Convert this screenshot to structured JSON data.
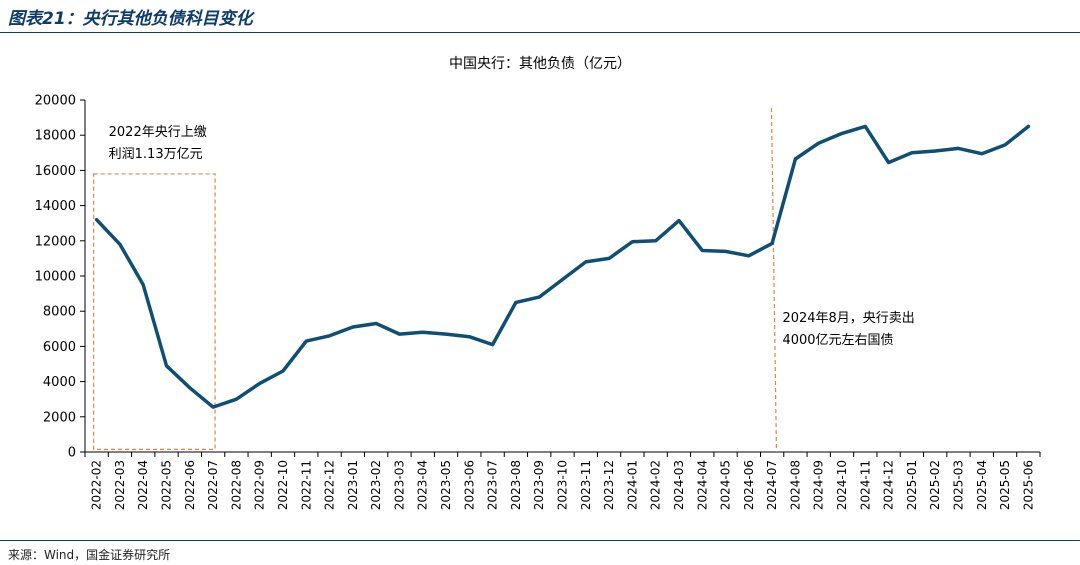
{
  "figure": {
    "title": "图表21：央行其他负债科目变化",
    "source": "来源：Wind，国金证券研究所"
  },
  "colors": {
    "line": "#0e4f73",
    "box": "#e8843b",
    "header": "#0d3c6b"
  },
  "chart_data": {
    "type": "line",
    "title": "中国央行：其他负债（亿元）",
    "xlabel": "",
    "ylabel": "",
    "ylim": [
      0,
      20000
    ],
    "yticks": [
      0,
      2000,
      4000,
      6000,
      8000,
      10000,
      12000,
      14000,
      16000,
      18000,
      20000
    ],
    "grid": false,
    "legend": "none",
    "categories": [
      "2022-02",
      "2022-03",
      "2022-04",
      "2022-05",
      "2022-06",
      "2022-07",
      "2022-08",
      "2022-09",
      "2022-10",
      "2022-11",
      "2022-12",
      "2023-01",
      "2023-02",
      "2023-03",
      "2023-04",
      "2023-05",
      "2023-06",
      "2023-07",
      "2023-08",
      "2023-09",
      "2023-10",
      "2023-11",
      "2023-12",
      "2024-01",
      "2024-02",
      "2024-03",
      "2024-04",
      "2024-05",
      "2024-06",
      "2024-07",
      "2024-08",
      "2024-09",
      "2024-10",
      "2024-11",
      "2024-12",
      "2025-01",
      "2025-02",
      "2025-03",
      "2025-04",
      "2025-05",
      "2025-06"
    ],
    "series": [
      {
        "values": [
          13200,
          11800,
          9500,
          4900,
          3650,
          2550,
          3000,
          3900,
          4600,
          6300,
          6600,
          7100,
          7300,
          6700,
          6800,
          6700,
          6550,
          6100,
          8500,
          8800,
          9800,
          10800,
          11000,
          11950,
          12000,
          13150,
          11450,
          11400,
          11150,
          11850,
          16650,
          17550,
          18100,
          18500,
          16450,
          17000,
          17100,
          17250,
          16950,
          17450,
          18500
        ]
      }
    ],
    "annotations": [
      {
        "lines": [
          "2022年央行上缴",
          "利润1.13万亿元"
        ],
        "box_from": "2022-02",
        "box_to": "2022-07",
        "box_top": 15800,
        "box_bottom": 150
      },
      {
        "lines": [
          "2024年8月，央行卖出",
          "4000亿元左右国债"
        ],
        "marker_x": 29.1
      }
    ]
  }
}
